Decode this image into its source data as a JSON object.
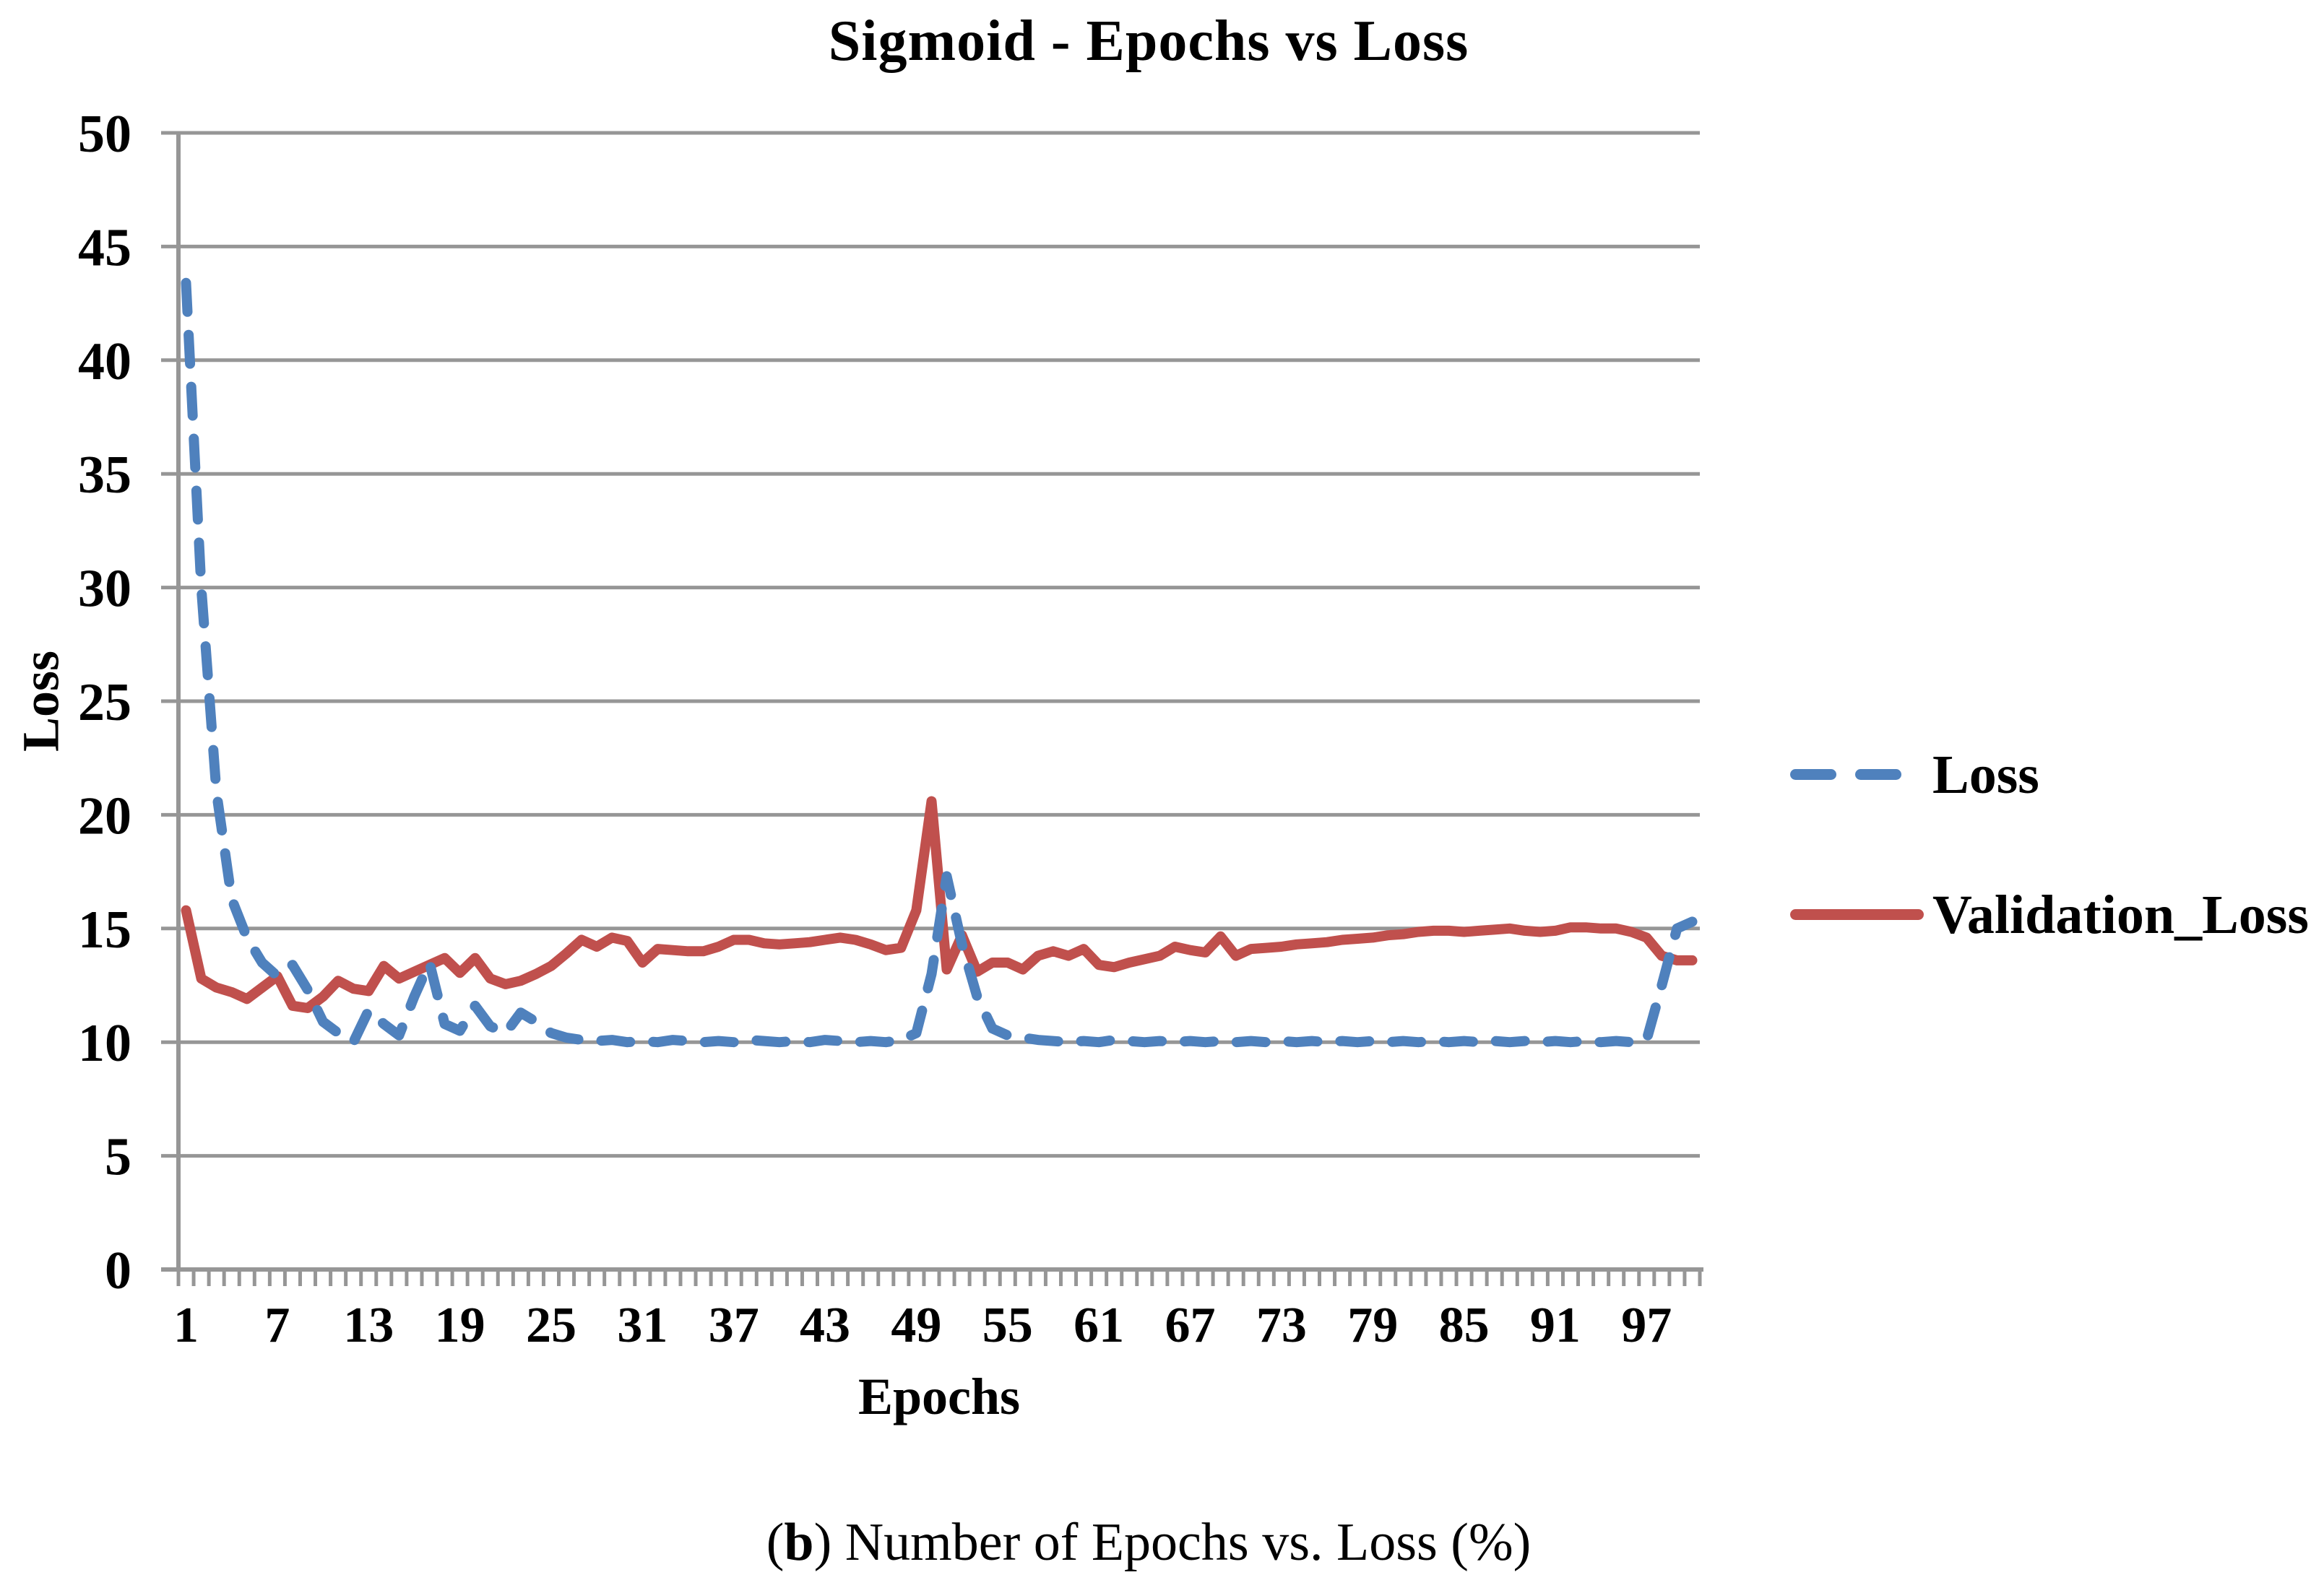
{
  "figure": {
    "title": "Sigmoid - Epochs vs Loss",
    "y_axis_title": "Loss",
    "x_axis_title": "Epochs",
    "caption": {
      "prefix": "(",
      "bold": "b",
      "rest": ") Number of Epochs vs. Loss (%)"
    },
    "colors": {
      "loss_blue": "#4F81BD",
      "validation_red": "#C0504D",
      "grid_gray": "#969696",
      "text": "#000000",
      "background": "#FFFFFF"
    }
  },
  "chart_data": {
    "type": "line",
    "title": "Sigmoid - Epochs vs Loss",
    "xlabel": "Epochs",
    "ylabel": "Loss",
    "ylim": [
      0,
      50
    ],
    "y_ticks": [
      0,
      5,
      10,
      15,
      20,
      25,
      30,
      35,
      40,
      45,
      50
    ],
    "x_range": [
      1,
      100
    ],
    "x_tick_labels": [
      1,
      7,
      13,
      19,
      25,
      31,
      37,
      43,
      49,
      55,
      61,
      67,
      73,
      79,
      85,
      91,
      97
    ],
    "grid": "horizontal",
    "legend_position": "right",
    "series": [
      {
        "name": "Loss",
        "style": "dashed",
        "color": "#4F81BD",
        "values": [
          43.4,
          30.0,
          21.0,
          16.3,
          14.6,
          13.5,
          12.9,
          13.4,
          12.3,
          10.9,
          10.4,
          10.0,
          11.4,
          10.8,
          10.3,
          12.0,
          13.5,
          10.8,
          10.5,
          11.6,
          10.7,
          10.4,
          11.3,
          10.9,
          10.4,
          10.2,
          10.1,
          10.05,
          10.1,
          10.0,
          10.05,
          10.0,
          10.1,
          10.05,
          10.0,
          10.05,
          10.0,
          10.1,
          10.05,
          10.0,
          10.05,
          10.0,
          10.1,
          10.05,
          10.0,
          10.05,
          10.0,
          10.1,
          10.4,
          13.0,
          17.3,
          14.3,
          12.0,
          10.6,
          10.3,
          10.2,
          10.1,
          10.05,
          10.0,
          10.05,
          10.0,
          10.1,
          10.05,
          10.0,
          10.05,
          10.0,
          10.05,
          10.0,
          10.05,
          10.0,
          10.05,
          10.0,
          10.05,
          10.0,
          10.05,
          10.0,
          10.05,
          10.0,
          10.05,
          10.0,
          10.05,
          10.0,
          10.05,
          10.0,
          10.05,
          10.0,
          10.05,
          10.0,
          10.05,
          10.0,
          10.05,
          10.0,
          10.05,
          10.0,
          10.05,
          10.0,
          10.1,
          12.5,
          15.0,
          15.3
        ]
      },
      {
        "name": "Validation_Loss",
        "style": "solid",
        "color": "#C0504D",
        "values": [
          15.8,
          12.8,
          12.4,
          12.2,
          11.9,
          12.4,
          12.9,
          11.6,
          11.5,
          12.0,
          12.7,
          12.35,
          12.25,
          13.35,
          12.8,
          13.1,
          13.4,
          13.7,
          13.05,
          13.7,
          12.8,
          12.55,
          12.7,
          13.0,
          13.35,
          13.9,
          14.5,
          14.2,
          14.6,
          14.45,
          13.5,
          14.1,
          14.05,
          14.0,
          14.0,
          14.2,
          14.5,
          14.5,
          14.35,
          14.3,
          14.35,
          14.4,
          14.5,
          14.6,
          14.5,
          14.3,
          14.05,
          14.15,
          15.8,
          20.6,
          13.2,
          14.7,
          13.1,
          13.5,
          13.5,
          13.2,
          13.8,
          14.0,
          13.8,
          14.1,
          13.4,
          13.3,
          13.5,
          13.65,
          13.8,
          14.2,
          14.05,
          13.95,
          14.65,
          13.8,
          14.1,
          14.15,
          14.2,
          14.3,
          14.35,
          14.4,
          14.5,
          14.55,
          14.6,
          14.7,
          14.75,
          14.85,
          14.9,
          14.9,
          14.85,
          14.9,
          14.95,
          15.0,
          14.9,
          14.85,
          14.9,
          15.05,
          15.05,
          15.0,
          15.0,
          14.85,
          14.6,
          13.8,
          13.6,
          13.6
        ]
      }
    ]
  }
}
